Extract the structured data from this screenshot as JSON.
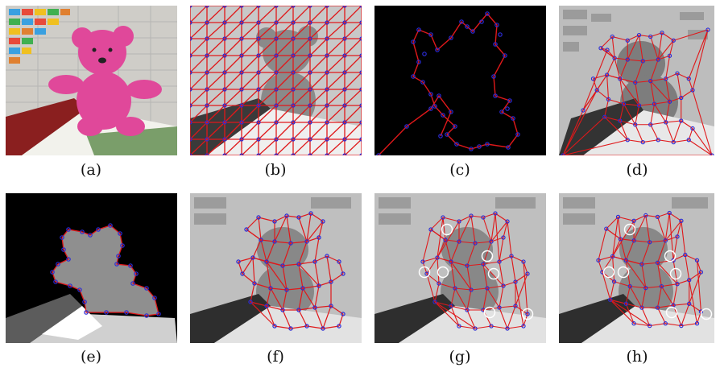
{
  "figure": {
    "captions": [
      "(a)",
      "(b)",
      "(c)",
      "(d)",
      "(e)",
      "(f)",
      "(g)",
      "(h)"
    ]
  },
  "colors": {
    "edge": "#e0181a",
    "vertex": "#2b2bd6",
    "highlight": "#ffffff",
    "bear_pink": "#e0489a",
    "background_dark": "#000000"
  }
}
